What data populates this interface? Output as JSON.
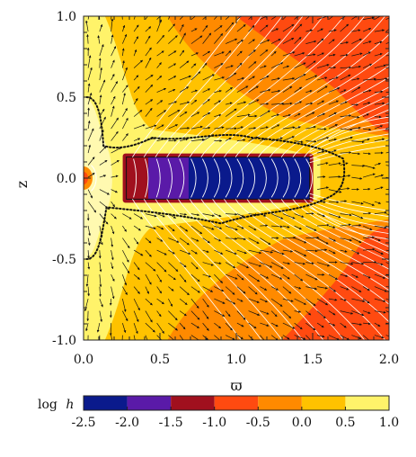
{
  "chart_data": {
    "type": "heatmap",
    "xlabel": "ϖ",
    "ylabel": "z",
    "xlim": [
      0.0,
      2.0
    ],
    "ylim": [
      -1.0,
      1.0
    ],
    "x_ticks": [
      "0.0",
      "0.5",
      "1.0",
      "1.5",
      "2.0"
    ],
    "y_ticks": [
      "-1.0",
      "-0.5",
      "0.0",
      "0.5",
      "1.0"
    ],
    "colorbar": {
      "label": "log",
      "label_var": "h",
      "ticks": [
        "-2.5",
        "-2.0",
        "-1.5",
        "-1.0",
        "-0.5",
        "0.0",
        "0.5",
        "1.0"
      ],
      "levels": [
        -2.5,
        -2.0,
        -1.5,
        -1.0,
        -0.5,
        0.0,
        0.5,
        1.0
      ],
      "colors": [
        "#0a1a8c",
        "#5a1aa8",
        "#a0101e",
        "#ff4a10",
        "#ff8a00",
        "#ffc200",
        "#fff36a"
      ]
    },
    "disk": {
      "x_range": [
        0.28,
        1.48
      ],
      "z_range": [
        -0.13,
        0.13
      ],
      "log_h_min": -2.5,
      "log_h_max": -0.5
    },
    "overlays": [
      {
        "name": "velocity-vectors",
        "color": "#111111"
      },
      {
        "name": "field-lines",
        "color": "#ffffff"
      },
      {
        "name": "dotted-contour",
        "color": "#111111"
      }
    ]
  }
}
